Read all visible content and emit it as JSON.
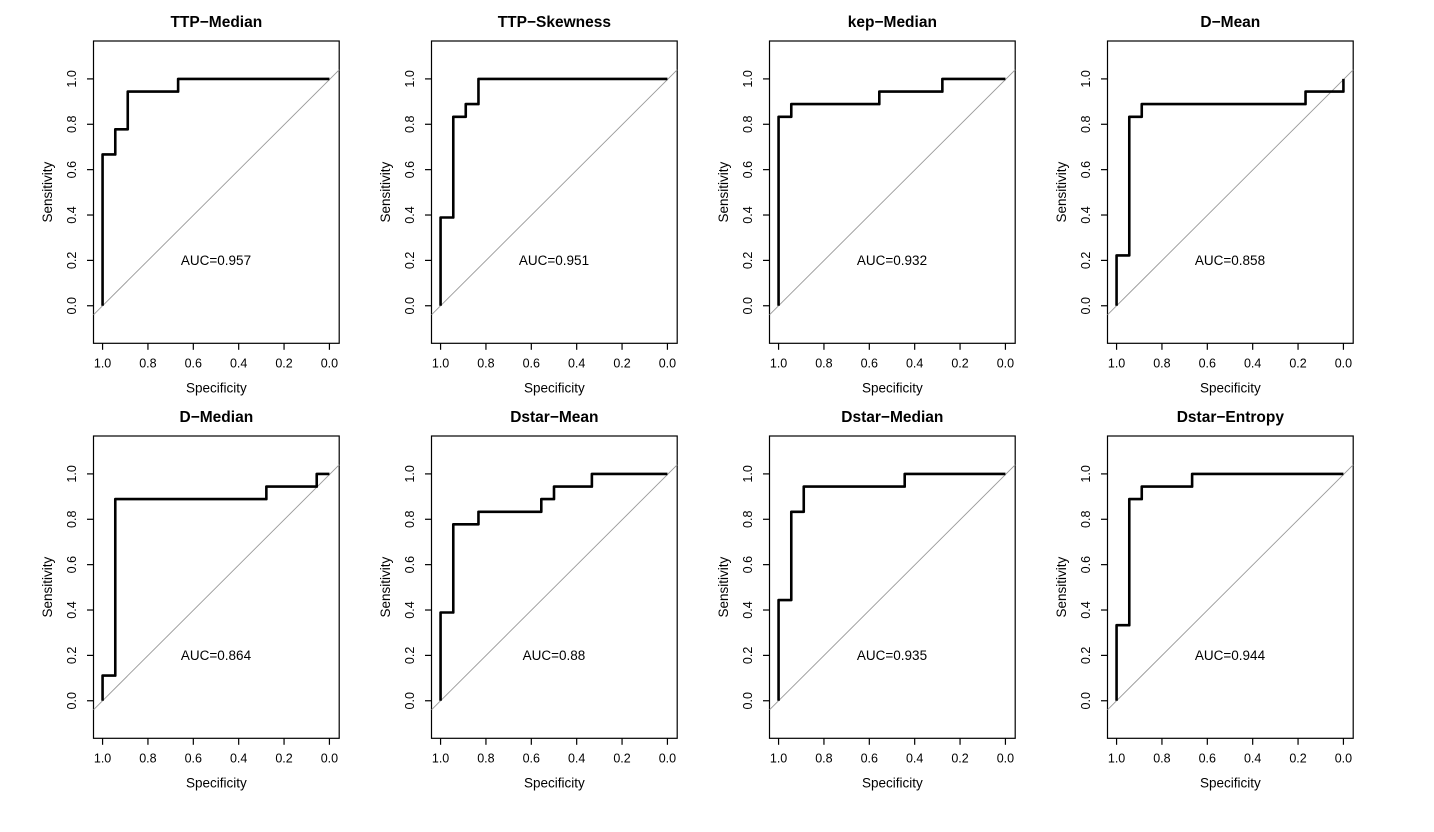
{
  "figure": {
    "description": "Grid of eight ROC curve plots with diagonal chance reference lines"
  },
  "chart_data": {
    "type": "line",
    "variant": "roc_step_curves",
    "grid_layout": {
      "rows": 2,
      "cols": 4
    },
    "axes": {
      "xlabel": "Specificity",
      "ylabel": "Sensitivity",
      "x_tick_labels": [
        "1.0",
        "0.8",
        "0.6",
        "0.4",
        "0.2",
        "0.0"
      ],
      "x_tick_values": [
        1.0,
        0.8,
        0.6,
        0.4,
        0.2,
        0.0
      ],
      "y_tick_labels": [
        "0.0",
        "0.2",
        "0.4",
        "0.6",
        "0.8",
        "1.0"
      ],
      "y_tick_values": [
        0.0,
        0.2,
        0.4,
        0.6,
        0.8,
        1.0
      ],
      "x_axis_reversed": true,
      "xlim": [
        1.04,
        -0.04
      ],
      "ylim": [
        0.0,
        1.0
      ],
      "grid": "off"
    },
    "style": {
      "curve_color": "#000000",
      "reference_line_color": "#999999",
      "box_color": "#000000",
      "background_color": "#ffffff"
    },
    "reference_line": "diagonal chance line sensitivity = 1 - specificity",
    "panels": [
      {
        "title": "TTP−Median",
        "auc": 0.957,
        "auc_label": "AUC=0.957",
        "points": [
          [
            1.0,
            0.0
          ],
          [
            1.0,
            0.667
          ],
          [
            0.944,
            0.667
          ],
          [
            0.944,
            0.778
          ],
          [
            0.889,
            0.778
          ],
          [
            0.889,
            0.944
          ],
          [
            0.667,
            0.944
          ],
          [
            0.667,
            1.0
          ],
          [
            0.0,
            1.0
          ]
        ]
      },
      {
        "title": "TTP−Skewness",
        "auc": 0.951,
        "auc_label": "AUC=0.951",
        "points": [
          [
            1.0,
            0.0
          ],
          [
            1.0,
            0.389
          ],
          [
            0.944,
            0.389
          ],
          [
            0.944,
            0.833
          ],
          [
            0.889,
            0.833
          ],
          [
            0.889,
            0.889
          ],
          [
            0.833,
            0.889
          ],
          [
            0.833,
            1.0
          ],
          [
            0.0,
            1.0
          ]
        ]
      },
      {
        "title": "kep−Median",
        "auc": 0.932,
        "auc_label": "AUC=0.932",
        "points": [
          [
            1.0,
            0.0
          ],
          [
            1.0,
            0.833
          ],
          [
            0.944,
            0.833
          ],
          [
            0.944,
            0.889
          ],
          [
            0.556,
            0.889
          ],
          [
            0.556,
            0.944
          ],
          [
            0.278,
            0.944
          ],
          [
            0.278,
            1.0
          ],
          [
            0.0,
            1.0
          ]
        ]
      },
      {
        "title": "D−Mean",
        "auc": 0.858,
        "auc_label": "AUC=0.858",
        "points": [
          [
            1.0,
            0.0
          ],
          [
            1.0,
            0.222
          ],
          [
            0.944,
            0.222
          ],
          [
            0.944,
            0.833
          ],
          [
            0.889,
            0.833
          ],
          [
            0.889,
            0.889
          ],
          [
            0.167,
            0.889
          ],
          [
            0.167,
            0.944
          ],
          [
            0.0,
            0.944
          ],
          [
            0.0,
            1.0
          ]
        ]
      },
      {
        "title": "D−Median",
        "auc": 0.864,
        "auc_label": "AUC=0.864",
        "points": [
          [
            1.0,
            0.0
          ],
          [
            1.0,
            0.111
          ],
          [
            0.944,
            0.111
          ],
          [
            0.944,
            0.889
          ],
          [
            0.278,
            0.889
          ],
          [
            0.278,
            0.944
          ],
          [
            0.056,
            0.944
          ],
          [
            0.056,
            1.0
          ],
          [
            0.0,
            1.0
          ]
        ]
      },
      {
        "title": "Dstar−Mean",
        "auc": 0.88,
        "auc_label": "AUC=0.88",
        "points": [
          [
            1.0,
            0.0
          ],
          [
            1.0,
            0.389
          ],
          [
            0.944,
            0.389
          ],
          [
            0.944,
            0.778
          ],
          [
            0.833,
            0.778
          ],
          [
            0.833,
            0.833
          ],
          [
            0.556,
            0.833
          ],
          [
            0.556,
            0.889
          ],
          [
            0.5,
            0.889
          ],
          [
            0.5,
            0.944
          ],
          [
            0.333,
            0.944
          ],
          [
            0.333,
            1.0
          ],
          [
            0.0,
            1.0
          ]
        ]
      },
      {
        "title": "Dstar−Median",
        "auc": 0.935,
        "auc_label": "AUC=0.935",
        "points": [
          [
            1.0,
            0.0
          ],
          [
            1.0,
            0.444
          ],
          [
            0.944,
            0.444
          ],
          [
            0.944,
            0.833
          ],
          [
            0.889,
            0.833
          ],
          [
            0.889,
            0.944
          ],
          [
            0.444,
            0.944
          ],
          [
            0.444,
            1.0
          ],
          [
            0.0,
            1.0
          ]
        ]
      },
      {
        "title": "Dstar−Entropy",
        "auc": 0.944,
        "auc_label": "AUC=0.944",
        "points": [
          [
            1.0,
            0.0
          ],
          [
            1.0,
            0.333
          ],
          [
            0.944,
            0.333
          ],
          [
            0.944,
            0.889
          ],
          [
            0.889,
            0.889
          ],
          [
            0.889,
            0.944
          ],
          [
            0.667,
            0.944
          ],
          [
            0.667,
            1.0
          ],
          [
            0.0,
            1.0
          ]
        ]
      }
    ]
  }
}
